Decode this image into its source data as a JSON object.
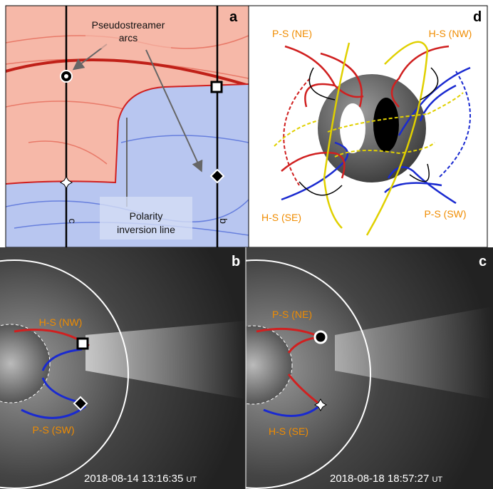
{
  "panels": {
    "a": {
      "letter": "a",
      "annotations": [
        "Pseudostreamer",
        "arcs",
        "Polarity",
        "inversion line"
      ],
      "line_labels": [
        "c",
        "b"
      ]
    },
    "d": {
      "letter": "d",
      "labels": [
        "P-S (NE)",
        "H-S (NW)",
        "H-S (SE)",
        "P-S (SW)"
      ]
    },
    "b": {
      "letter": "b",
      "labels": [
        "H-S (NW)",
        "P-S (SW)"
      ],
      "timestamp": "2018-08-14 13:16:35",
      "unit": "UT"
    },
    "c": {
      "letter": "c",
      "labels": [
        "P-S (NE)",
        "H-S (SE)"
      ],
      "timestamp": "2018-08-18 18:57:27",
      "unit": "UT"
    }
  }
}
